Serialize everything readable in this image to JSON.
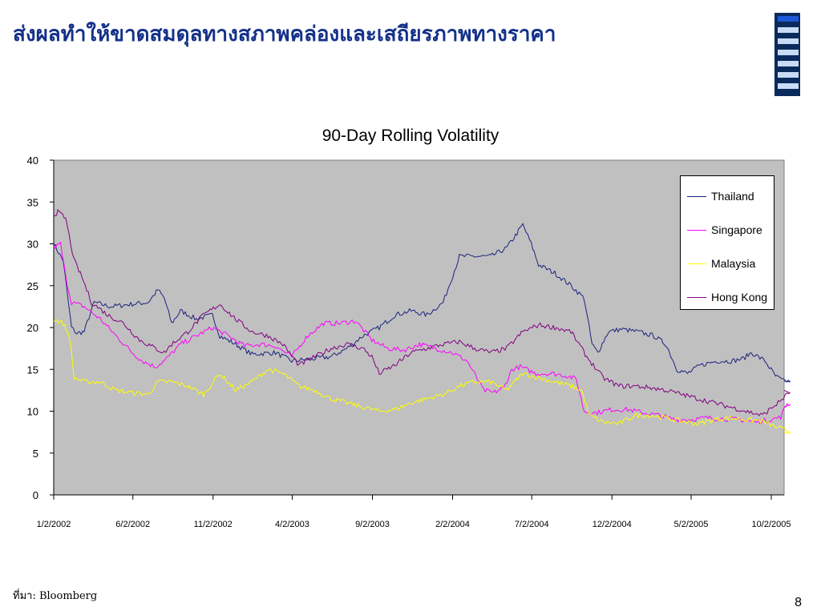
{
  "slide": {
    "title": "ส่งผลทำให้ขาดสมดุลทางสภาพคล่องและเสถียรภาพทางราคา",
    "source_label": "ที่มา:  Bloomberg",
    "page_number": "8"
  },
  "colors": {
    "title": "#14318a",
    "plot_background": "#c0c0c0",
    "nav_background": "#0a2a5c",
    "nav_active": "#1c58d8",
    "nav_inactive": "#c9dcf5"
  },
  "chart_data": {
    "type": "line",
    "title": "90-Day Rolling Volatility",
    "xlabel": "",
    "ylabel": "",
    "ylim": [
      0,
      40
    ],
    "yticks": [
      0,
      5,
      10,
      15,
      20,
      25,
      30,
      35,
      40
    ],
    "x_tick_labels": [
      "1/2/2002",
      "6/2/2002",
      "11/2/2002",
      "4/2/2003",
      "9/2/2003",
      "2/2/2004",
      "7/2/2004",
      "12/2/2004",
      "5/2/2005",
      "10/2/2005"
    ],
    "x_range": [
      "2002-01-02",
      "2005-11-10"
    ],
    "grid": false,
    "legend_position": "top-right",
    "series": [
      {
        "name": "Thailand",
        "color": "#1a237e",
        "points": [
          [
            "2002-01-02",
            30
          ],
          [
            "2002-01-20",
            28
          ],
          [
            "2002-02-05",
            20
          ],
          [
            "2002-02-15",
            19.3
          ],
          [
            "2002-03-01",
            19.5
          ],
          [
            "2002-03-20",
            23
          ],
          [
            "2002-04-20",
            22.5
          ],
          [
            "2002-06-01",
            22.8
          ],
          [
            "2002-07-01",
            23
          ],
          [
            "2002-07-20",
            24.5
          ],
          [
            "2002-08-01",
            23.5
          ],
          [
            "2002-08-15",
            20.5
          ],
          [
            "2002-09-01",
            22
          ],
          [
            "2002-10-01",
            21
          ],
          [
            "2002-11-01",
            21.5
          ],
          [
            "2002-11-15",
            19
          ],
          [
            "2002-12-15",
            18
          ],
          [
            "2003-01-15",
            16.8
          ],
          [
            "2003-03-01",
            17
          ],
          [
            "2003-04-01",
            16
          ],
          [
            "2003-05-01",
            16.2
          ],
          [
            "2003-06-15",
            16.5
          ],
          [
            "2003-07-15",
            17.5
          ],
          [
            "2003-08-15",
            19
          ],
          [
            "2003-09-15",
            20
          ],
          [
            "2003-10-15",
            21.5
          ],
          [
            "2003-11-15",
            22
          ],
          [
            "2003-12-15",
            21.5
          ],
          [
            "2004-01-15",
            23
          ],
          [
            "2004-02-15",
            28.5
          ],
          [
            "2004-03-15",
            28.5
          ],
          [
            "2004-04-15",
            28.5
          ],
          [
            "2004-05-15",
            29.5
          ],
          [
            "2004-06-01",
            31
          ],
          [
            "2004-06-15",
            32.3
          ],
          [
            "2004-07-01",
            30
          ],
          [
            "2004-07-15",
            27.5
          ],
          [
            "2004-08-15",
            26.5
          ],
          [
            "2004-09-15",
            25
          ],
          [
            "2004-10-10",
            23.5
          ],
          [
            "2004-10-25",
            18
          ],
          [
            "2004-11-05",
            17
          ],
          [
            "2004-11-25",
            19.5
          ],
          [
            "2004-12-20",
            19.8
          ],
          [
            "2005-01-20",
            19.5
          ],
          [
            "2005-02-20",
            19
          ],
          [
            "2005-03-15",
            18
          ],
          [
            "2005-04-05",
            15
          ],
          [
            "2005-04-25",
            14.5
          ],
          [
            "2005-05-20",
            15.5
          ],
          [
            "2005-06-20",
            16
          ],
          [
            "2005-07-20",
            16
          ],
          [
            "2005-08-10",
            16.3
          ],
          [
            "2005-08-25",
            17
          ],
          [
            "2005-09-20",
            16
          ],
          [
            "2005-10-10",
            14.2
          ],
          [
            "2005-10-25",
            13.6
          ],
          [
            "2005-11-10",
            13.6
          ]
        ]
      },
      {
        "name": "Singapore",
        "color": "#ff00ff",
        "points": [
          [
            "2002-01-02",
            29.5
          ],
          [
            "2002-01-15",
            30
          ],
          [
            "2002-01-25",
            26
          ],
          [
            "2002-02-05",
            23
          ],
          [
            "2002-03-01",
            22.5
          ],
          [
            "2002-04-01",
            21
          ],
          [
            "2002-05-01",
            19
          ],
          [
            "2002-06-01",
            17
          ],
          [
            "2002-06-20",
            16
          ],
          [
            "2002-07-15",
            15.3
          ],
          [
            "2002-08-01",
            16
          ],
          [
            "2002-09-01",
            18
          ],
          [
            "2002-10-01",
            19
          ],
          [
            "2002-11-01",
            20
          ],
          [
            "2002-12-01",
            19
          ],
          [
            "2003-01-01",
            17.8
          ],
          [
            "2003-02-01",
            18
          ],
          [
            "2003-03-01",
            17.8
          ],
          [
            "2003-04-01",
            16.5
          ],
          [
            "2003-05-01",
            19
          ],
          [
            "2003-06-01",
            20.5
          ],
          [
            "2003-07-01",
            20.5
          ],
          [
            "2003-08-01",
            20.8
          ],
          [
            "2003-09-01",
            18.5
          ],
          [
            "2003-10-01",
            17.5
          ],
          [
            "2003-11-01",
            17.3
          ],
          [
            "2003-12-01",
            18
          ],
          [
            "2004-01-01",
            17.5
          ],
          [
            "2004-02-01",
            17
          ],
          [
            "2004-03-01",
            16
          ],
          [
            "2004-04-01",
            12.5
          ],
          [
            "2004-04-20",
            12.2
          ],
          [
            "2004-05-10",
            12.8
          ],
          [
            "2004-05-25",
            15
          ],
          [
            "2004-06-10",
            15.3
          ],
          [
            "2004-07-10",
            14.5
          ],
          [
            "2004-08-10",
            14.5
          ],
          [
            "2004-09-10",
            14.2
          ],
          [
            "2004-09-25",
            13.8
          ],
          [
            "2004-10-10",
            10
          ],
          [
            "2004-11-01",
            9.8
          ],
          [
            "2004-12-01",
            10.2
          ],
          [
            "2005-01-01",
            10.2
          ],
          [
            "2005-02-01",
            9.8
          ],
          [
            "2005-03-01",
            9.5
          ],
          [
            "2005-04-01",
            9
          ],
          [
            "2005-05-01",
            9
          ],
          [
            "2005-06-01",
            9.2
          ],
          [
            "2005-07-01",
            9.1
          ],
          [
            "2005-08-01",
            9
          ],
          [
            "2005-09-01",
            8.7
          ],
          [
            "2005-10-01",
            9
          ],
          [
            "2005-10-20",
            9.3
          ],
          [
            "2005-11-01",
            11
          ],
          [
            "2005-11-10",
            10.5
          ]
        ]
      },
      {
        "name": "Malaysia",
        "color": "#ffff00",
        "points": [
          [
            "2002-01-02",
            21
          ],
          [
            "2002-01-20",
            20.5
          ],
          [
            "2002-02-01",
            19
          ],
          [
            "2002-02-10",
            14
          ],
          [
            "2002-03-01",
            13.5
          ],
          [
            "2002-04-01",
            13.5
          ],
          [
            "2002-05-01",
            12.5
          ],
          [
            "2002-06-01",
            12.2
          ],
          [
            "2002-07-01",
            12
          ],
          [
            "2002-07-20",
            13.5
          ],
          [
            "2002-08-15",
            13.5
          ],
          [
            "2002-09-15",
            13
          ],
          [
            "2002-10-15",
            12
          ],
          [
            "2002-11-15",
            14.5
          ],
          [
            "2002-12-15",
            12.5
          ],
          [
            "2003-01-15",
            13.5
          ],
          [
            "2003-02-15",
            15
          ],
          [
            "2003-03-15",
            14.5
          ],
          [
            "2003-04-15",
            13
          ],
          [
            "2003-05-15",
            12.5
          ],
          [
            "2003-06-15",
            11.5
          ],
          [
            "2003-07-15",
            11
          ],
          [
            "2003-08-15",
            10.5
          ],
          [
            "2003-09-15",
            10
          ],
          [
            "2003-10-15",
            10.2
          ],
          [
            "2003-11-15",
            11
          ],
          [
            "2003-12-15",
            11.5
          ],
          [
            "2004-01-15",
            12
          ],
          [
            "2004-02-15",
            13
          ],
          [
            "2004-03-15",
            13.5
          ],
          [
            "2004-04-15",
            13.5
          ],
          [
            "2004-05-15",
            12.5
          ],
          [
            "2004-06-15",
            14.5
          ],
          [
            "2004-07-15",
            14
          ],
          [
            "2004-08-15",
            13.5
          ],
          [
            "2004-09-15",
            13
          ],
          [
            "2004-10-05",
            12.5
          ],
          [
            "2004-10-20",
            9.5
          ],
          [
            "2004-11-15",
            8.7
          ],
          [
            "2004-12-15",
            8.5
          ],
          [
            "2005-01-15",
            9.5
          ],
          [
            "2005-02-15",
            9.5
          ],
          [
            "2005-03-15",
            9.2
          ],
          [
            "2005-04-15",
            8.8
          ],
          [
            "2005-05-15",
            8.5
          ],
          [
            "2005-06-15",
            9
          ],
          [
            "2005-07-15",
            9.2
          ],
          [
            "2005-08-15",
            9
          ],
          [
            "2005-09-15",
            8.8
          ],
          [
            "2005-10-15",
            8
          ],
          [
            "2005-11-10",
            7.5
          ]
        ]
      },
      {
        "name": "Hong Kong",
        "color": "#800080",
        "points": [
          [
            "2002-01-02",
            33.5
          ],
          [
            "2002-01-10",
            33.8
          ],
          [
            "2002-01-25",
            33
          ],
          [
            "2002-02-10",
            28
          ],
          [
            "2002-02-25",
            26
          ],
          [
            "2002-03-15",
            23
          ],
          [
            "2002-04-15",
            21.5
          ],
          [
            "2002-05-15",
            20.5
          ],
          [
            "2002-06-15",
            18.5
          ],
          [
            "2002-07-15",
            17.5
          ],
          [
            "2002-08-01",
            17
          ],
          [
            "2002-08-15",
            18
          ],
          [
            "2002-09-15",
            19.5
          ],
          [
            "2002-10-15",
            21.5
          ],
          [
            "2002-11-15",
            22.8
          ],
          [
            "2002-12-15",
            21
          ],
          [
            "2003-01-15",
            19.5
          ],
          [
            "2003-02-15",
            19
          ],
          [
            "2003-03-15",
            18
          ],
          [
            "2003-04-15",
            15.5
          ],
          [
            "2003-05-15",
            16.5
          ],
          [
            "2003-06-15",
            17.5
          ],
          [
            "2003-07-15",
            18
          ],
          [
            "2003-08-15",
            17.5
          ],
          [
            "2003-09-01",
            16.5
          ],
          [
            "2003-09-15",
            14.5
          ],
          [
            "2003-10-15",
            15.5
          ],
          [
            "2003-11-15",
            17
          ],
          [
            "2003-12-15",
            17.5
          ],
          [
            "2004-01-15",
            18
          ],
          [
            "2004-02-15",
            18.3
          ],
          [
            "2004-03-15",
            17.5
          ],
          [
            "2004-04-15",
            17
          ],
          [
            "2004-05-15",
            17.5
          ],
          [
            "2004-06-15",
            19.5
          ],
          [
            "2004-07-15",
            20.3
          ],
          [
            "2004-08-15",
            20
          ],
          [
            "2004-09-15",
            19.5
          ],
          [
            "2004-10-15",
            16.5
          ],
          [
            "2004-11-15",
            14
          ],
          [
            "2004-12-15",
            13
          ],
          [
            "2005-01-15",
            13
          ],
          [
            "2005-02-15",
            12.8
          ],
          [
            "2005-03-15",
            12.5
          ],
          [
            "2005-04-15",
            12
          ],
          [
            "2005-05-15",
            11.5
          ],
          [
            "2005-06-15",
            11
          ],
          [
            "2005-07-15",
            10.5
          ],
          [
            "2005-08-15",
            10
          ],
          [
            "2005-09-15",
            9.5
          ],
          [
            "2005-10-15",
            11
          ],
          [
            "2005-11-10",
            12.5
          ]
        ]
      }
    ]
  }
}
